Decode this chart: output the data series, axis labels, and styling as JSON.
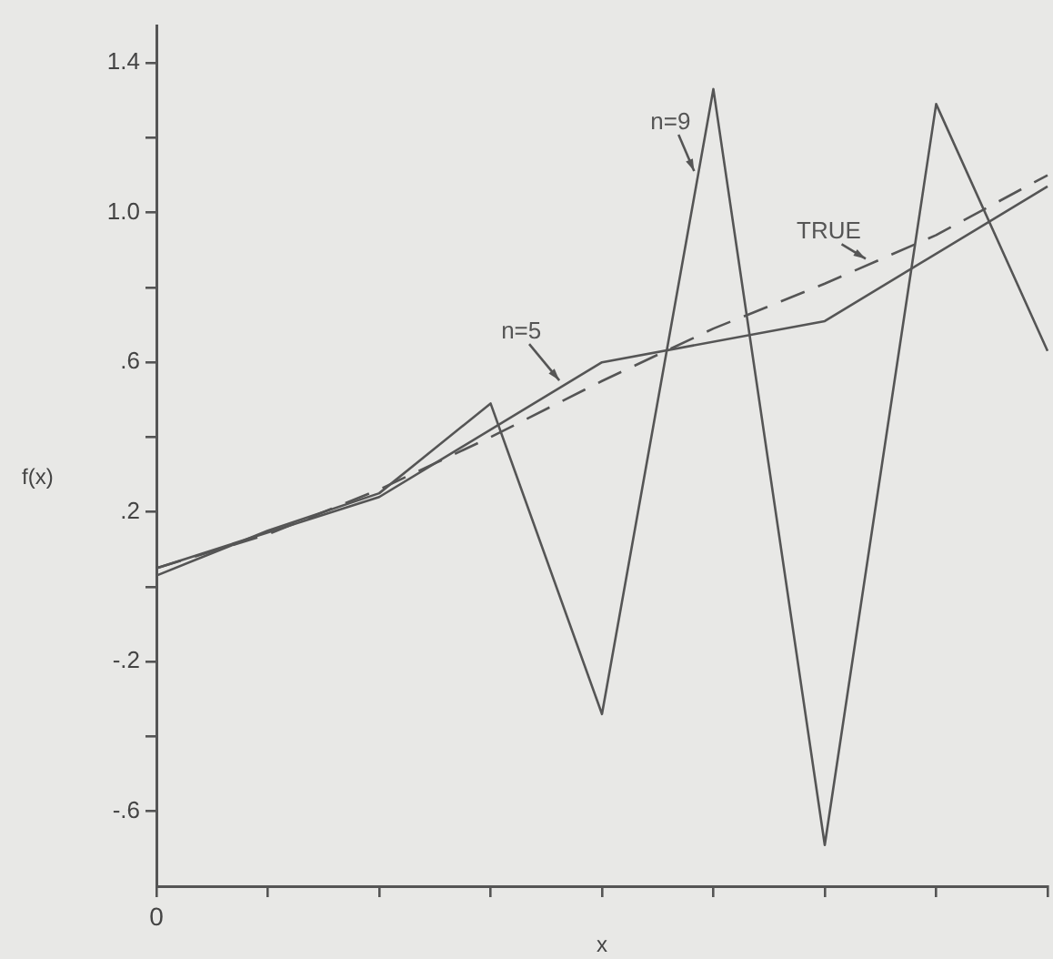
{
  "chart_data": {
    "type": "line",
    "xlabel": "x",
    "ylabel": "f(x)",
    "categories": [
      "0",
      null,
      null,
      null,
      null,
      null,
      null,
      null,
      null
    ],
    "ylim": [
      -0.8,
      1.5
    ],
    "yticks": [
      {
        "value": -0.6,
        "label": "-.6"
      },
      {
        "value": -0.4,
        "label": null
      },
      {
        "value": -0.2,
        "label": "-.2"
      },
      {
        "value": 0,
        "label": null
      },
      {
        "value": 0.2,
        "label": ".2"
      },
      {
        "value": 0.4,
        "label": null
      },
      {
        "value": 0.6,
        "label": ".6"
      },
      {
        "value": 0.8,
        "label": null
      },
      {
        "value": 1.0,
        "label": "1.0"
      },
      {
        "value": 1.2,
        "label": null
      },
      {
        "value": 1.4,
        "label": "1.4"
      }
    ],
    "grid": false,
    "legend": false,
    "marker": "none",
    "series": [
      {
        "name": "n=9",
        "color": "#555555",
        "line_style": "solid",
        "values": [
          0.03,
          0.15,
          0.25,
          0.49,
          -0.34,
          1.33,
          -0.69,
          1.29,
          0.63
        ]
      },
      {
        "name": "n=5",
        "color": "#555555",
        "line_style": "solid",
        "values": [
          0.05,
          null,
          0.24,
          null,
          0.6,
          null,
          0.71,
          null,
          1.07
        ]
      },
      {
        "name": "TRUE",
        "color": "#555555",
        "line_style": "dashed",
        "values": [
          0.05,
          0.14,
          0.26,
          0.4,
          0.55,
          0.69,
          0.81,
          0.94,
          1.1
        ]
      }
    ]
  }
}
